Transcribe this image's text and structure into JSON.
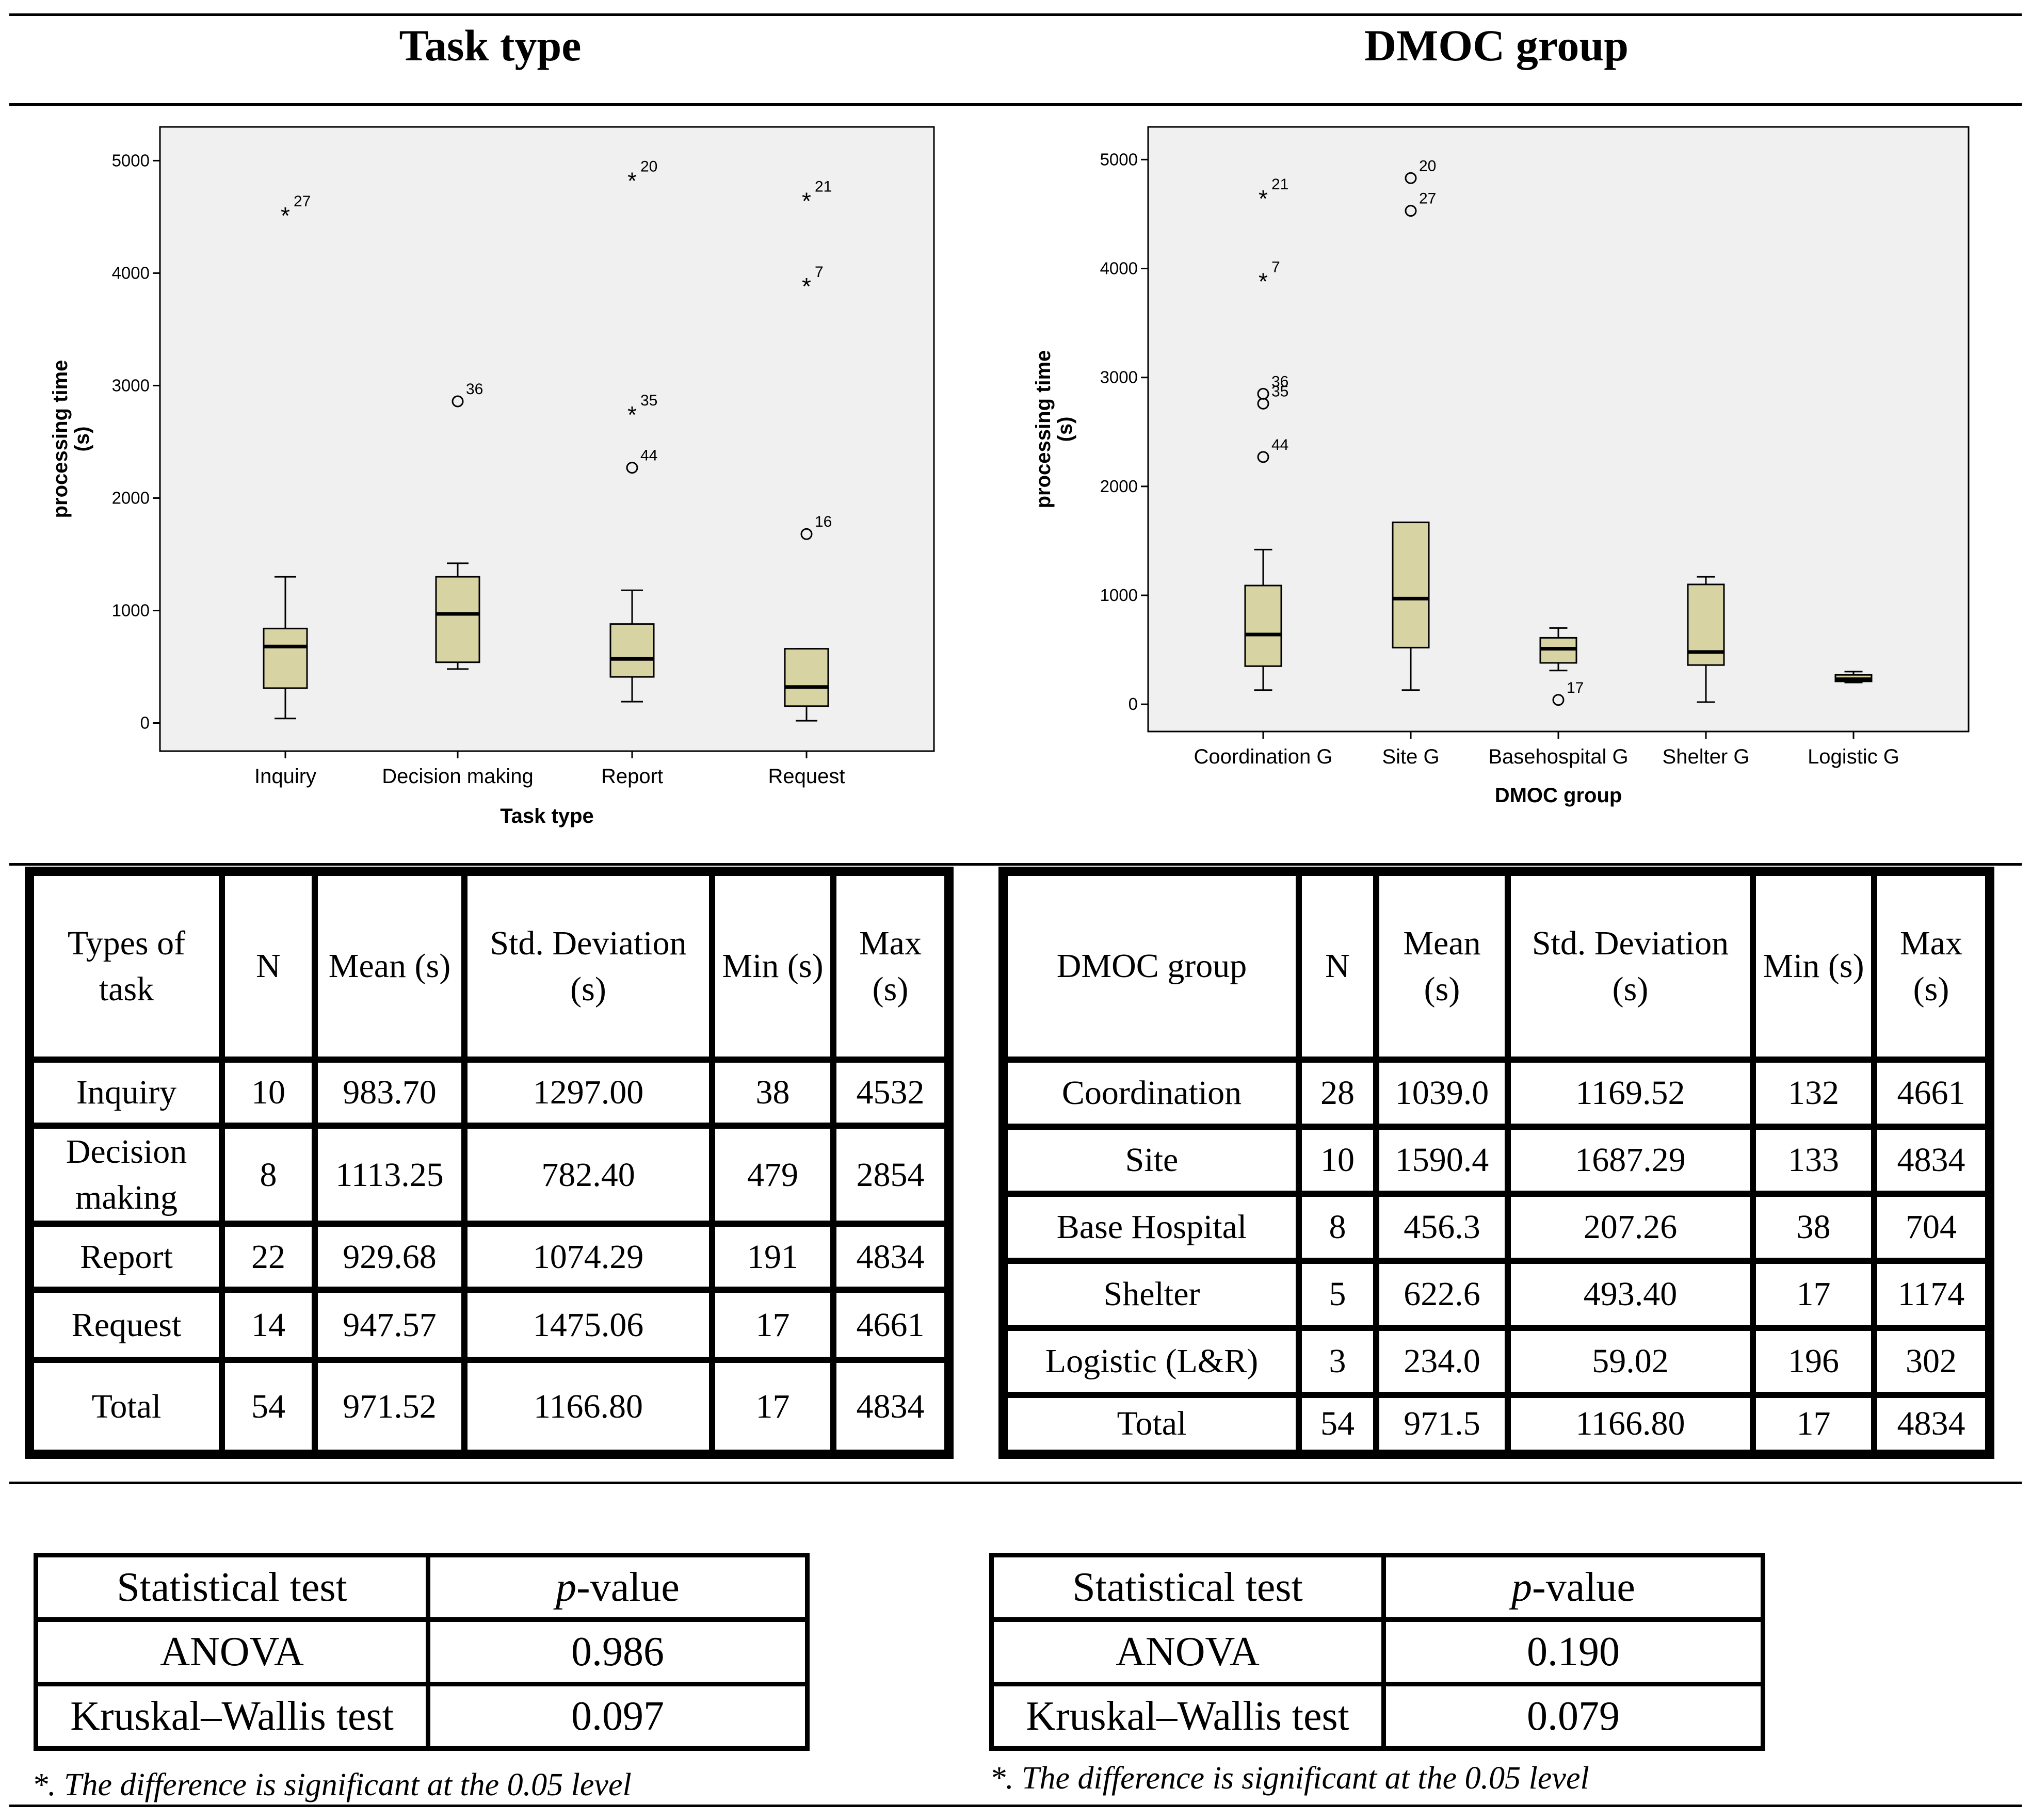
{
  "headings": {
    "left": "Task type",
    "right": "DMOC group"
  },
  "chart_data": [
    {
      "type": "boxplot",
      "title": "Task type",
      "xlabel": "Task type",
      "ylabel": "processing time (s)",
      "ylim": [
        -250,
        5300
      ],
      "yticks": [
        0,
        1000,
        2000,
        3000,
        4000,
        5000
      ],
      "categories": [
        "Inquiry",
        "Decision making",
        "Report",
        "Request"
      ],
      "boxes": [
        {
          "whisker_low": 40,
          "q1": 310,
          "median": 680,
          "q3": 840,
          "whisker_high": 1300,
          "outliers": [
            {
              "value": 4530,
              "marker": "star",
              "label": "27"
            }
          ]
        },
        {
          "whisker_low": 480,
          "q1": 540,
          "median": 970,
          "q3": 1300,
          "whisker_high": 1420,
          "outliers": [
            {
              "value": 2860,
              "marker": "circle",
              "label": "36"
            }
          ]
        },
        {
          "whisker_low": 190,
          "q1": 410,
          "median": 570,
          "q3": 880,
          "whisker_high": 1180,
          "outliers": [
            {
              "value": 4840,
              "marker": "star",
              "label": "20"
            },
            {
              "value": 2760,
              "marker": "star",
              "label": "35"
            },
            {
              "value": 2270,
              "marker": "circle",
              "label": "44"
            }
          ]
        },
        {
          "whisker_low": 20,
          "q1": 150,
          "median": 320,
          "q3": 660,
          "whisker_high": 660,
          "outliers": [
            {
              "value": 4660,
              "marker": "star",
              "label": "21"
            },
            {
              "value": 3900,
              "marker": "star",
              "label": "7"
            },
            {
              "value": 1680,
              "marker": "circle",
              "label": "16"
            }
          ]
        }
      ]
    },
    {
      "type": "boxplot",
      "title": "DMOC group",
      "xlabel": "DMOC group",
      "ylabel": "processing time (s)",
      "ylim": [
        -250,
        5300
      ],
      "yticks": [
        0,
        1000,
        2000,
        3000,
        4000,
        5000
      ],
      "categories": [
        "Coordination G",
        "Site G",
        "Basehospital G",
        "Shelter G",
        "Logistic G"
      ],
      "boxes": [
        {
          "whisker_low": 130,
          "q1": 350,
          "median": 640,
          "q3": 1090,
          "whisker_high": 1420,
          "outliers": [
            {
              "value": 4660,
              "marker": "star",
              "label": "21"
            },
            {
              "value": 3900,
              "marker": "star",
              "label": "7"
            },
            {
              "value": 2850,
              "marker": "circle",
              "label": "36"
            },
            {
              "value": 2760,
              "marker": "circle",
              "label": "35"
            },
            {
              "value": 2270,
              "marker": "circle",
              "label": "44"
            }
          ]
        },
        {
          "whisker_low": 130,
          "q1": 520,
          "median": 970,
          "q3": 1670,
          "whisker_high": 1670,
          "outliers": [
            {
              "value": 4830,
              "marker": "circle",
              "label": "20"
            },
            {
              "value": 4530,
              "marker": "circle",
              "label": "27"
            }
          ]
        },
        {
          "whisker_low": 310,
          "q1": 380,
          "median": 510,
          "q3": 610,
          "whisker_high": 700,
          "outliers": [
            {
              "value": 40,
              "marker": "circle",
              "label": "17"
            }
          ]
        },
        {
          "whisker_low": 20,
          "q1": 360,
          "median": 480,
          "q3": 1100,
          "whisker_high": 1170,
          "outliers": []
        },
        {
          "whisker_low": 200,
          "q1": 210,
          "median": 230,
          "q3": 270,
          "whisker_high": 300,
          "outliers": []
        }
      ]
    }
  ],
  "task_table": {
    "headers": [
      "Types of task",
      "N",
      "Mean (s)",
      "Std. Deviation (s)",
      "Min (s)",
      "Max (s)"
    ],
    "rows": [
      [
        "Inquiry",
        "10",
        "983.70",
        "1297.00",
        "38",
        "4532"
      ],
      [
        "Decision making",
        "8",
        "1113.25",
        "782.40",
        "479",
        "2854"
      ],
      [
        "Report",
        "22",
        "929.68",
        "1074.29",
        "191",
        "4834"
      ],
      [
        "Request",
        "14",
        "947.57",
        "1475.06",
        "17",
        "4661"
      ],
      [
        "Total",
        "54",
        "971.52",
        "1166.80",
        "17",
        "4834"
      ]
    ]
  },
  "dmoc_table": {
    "headers": [
      "DMOC group",
      "N",
      "Mean (s)",
      "Std. Deviation (s)",
      "Min (s)",
      "Max (s)"
    ],
    "rows": [
      [
        "Coordination",
        "28",
        "1039.0",
        "1169.52",
        "132",
        "4661"
      ],
      [
        "Site",
        "10",
        "1590.4",
        "1687.29",
        "133",
        "4834"
      ],
      [
        "Base Hospital",
        "8",
        "456.3",
        "207.26",
        "38",
        "704"
      ],
      [
        "Shelter",
        "5",
        "622.6",
        "493.40",
        "17",
        "1174"
      ],
      [
        "Logistic (L&R)",
        "3",
        "234.0",
        "59.02",
        "196",
        "302"
      ],
      [
        "Total",
        "54",
        "971.5",
        "1166.80",
        "17",
        "4834"
      ]
    ]
  },
  "task_tests": {
    "header_test": "Statistical test",
    "header_p_prefix": "p",
    "header_p_suffix": "-value",
    "rows": [
      [
        "ANOVA",
        "0.986"
      ],
      [
        "Kruskal–Wallis test",
        "0.097"
      ]
    ],
    "note": "*. The difference is significant at the 0.05 level"
  },
  "dmoc_tests": {
    "header_test": "Statistical test",
    "header_p_prefix": "p",
    "header_p_suffix": "-value",
    "rows": [
      [
        "ANOVA",
        "0.190"
      ],
      [
        "Kruskal–Wallis test",
        "0.079"
      ]
    ],
    "note": "*. The difference is significant at the 0.05 level"
  },
  "colors": {
    "box_fill": "#d7d3a3",
    "plot_bg": "#f0f0f0"
  }
}
